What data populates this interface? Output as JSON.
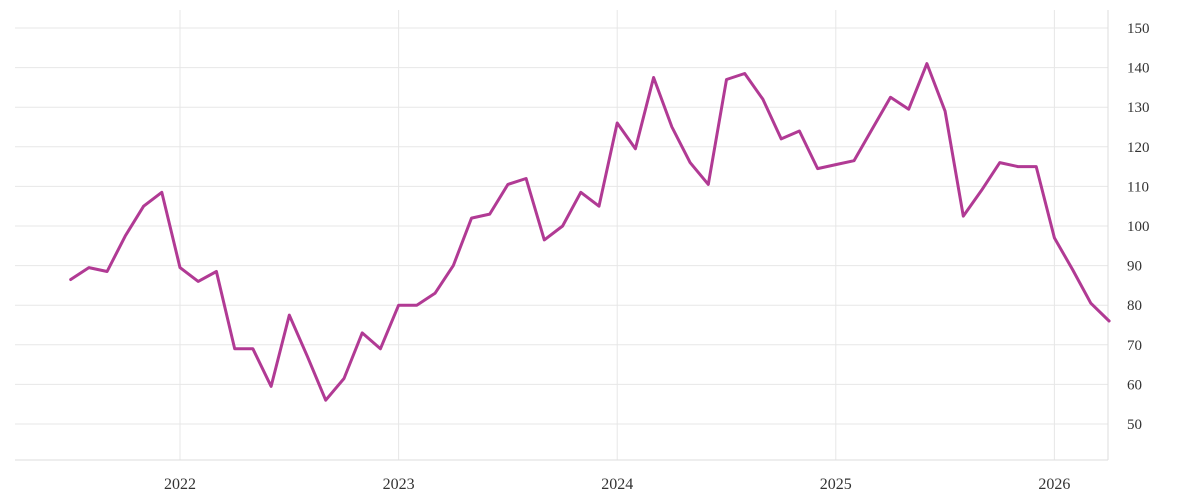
{
  "chart_data": {
    "type": "line",
    "line_color": "#b13a94",
    "line_width": 3,
    "background_color": "#ffffff",
    "grid_color": "#e7e7e7",
    "axis_line_color": "#dedede",
    "label_color": "#333333",
    "legend": "none",
    "grid": "on",
    "y_axis_side": "right",
    "y_ticks": [
      150,
      140,
      130,
      120,
      110,
      100,
      90,
      80,
      70,
      60,
      50
    ],
    "x_tick_labels": [
      "2022",
      "2023",
      "2024",
      "2025",
      "2026"
    ],
    "x_tick_months": [
      "2022-01",
      "2023-01",
      "2024-01",
      "2025-01",
      "2026-01"
    ],
    "ylim_labeled": [
      50,
      150
    ],
    "x": [
      "2021-07",
      "2021-08",
      "2021-09",
      "2021-10",
      "2021-11",
      "2021-12",
      "2022-01",
      "2022-02",
      "2022-03",
      "2022-04",
      "2022-05",
      "2022-06",
      "2022-07",
      "2022-08",
      "2022-09",
      "2022-10",
      "2022-11",
      "2022-12",
      "2023-01",
      "2023-02",
      "2023-03",
      "2023-04",
      "2023-05",
      "2023-06",
      "2023-07",
      "2023-08",
      "2023-09",
      "2023-10",
      "2023-11",
      "2023-12",
      "2024-01",
      "2024-02",
      "2024-03",
      "2024-04",
      "2024-05",
      "2024-06",
      "2024-07",
      "2024-08",
      "2024-09",
      "2024-10",
      "2024-11",
      "2024-12",
      "2025-01",
      "2025-02",
      "2025-03",
      "2025-04",
      "2025-05",
      "2025-06",
      "2025-07",
      "2025-08",
      "2025-09",
      "2025-10",
      "2025-11",
      "2025-12",
      "2026-01",
      "2026-02",
      "2026-03",
      "2026-04"
    ],
    "values": [
      86.5,
      89.5,
      88.5,
      97.5,
      105,
      108.5,
      89.5,
      86,
      88.5,
      69,
      69,
      59.5,
      77.5,
      67,
      56,
      61.5,
      73,
      69,
      80,
      80,
      83,
      90,
      102,
      103,
      110.5,
      112,
      96.5,
      100,
      108.5,
      105,
      126,
      119.5,
      137.5,
      125,
      116,
      110.5,
      137,
      138.5,
      132,
      122,
      124,
      114.5,
      115.5,
      116.5,
      124.5,
      132.5,
      129.5,
      141,
      129,
      102.5,
      109,
      116,
      115,
      115,
      97,
      89,
      80.5,
      76
    ]
  }
}
